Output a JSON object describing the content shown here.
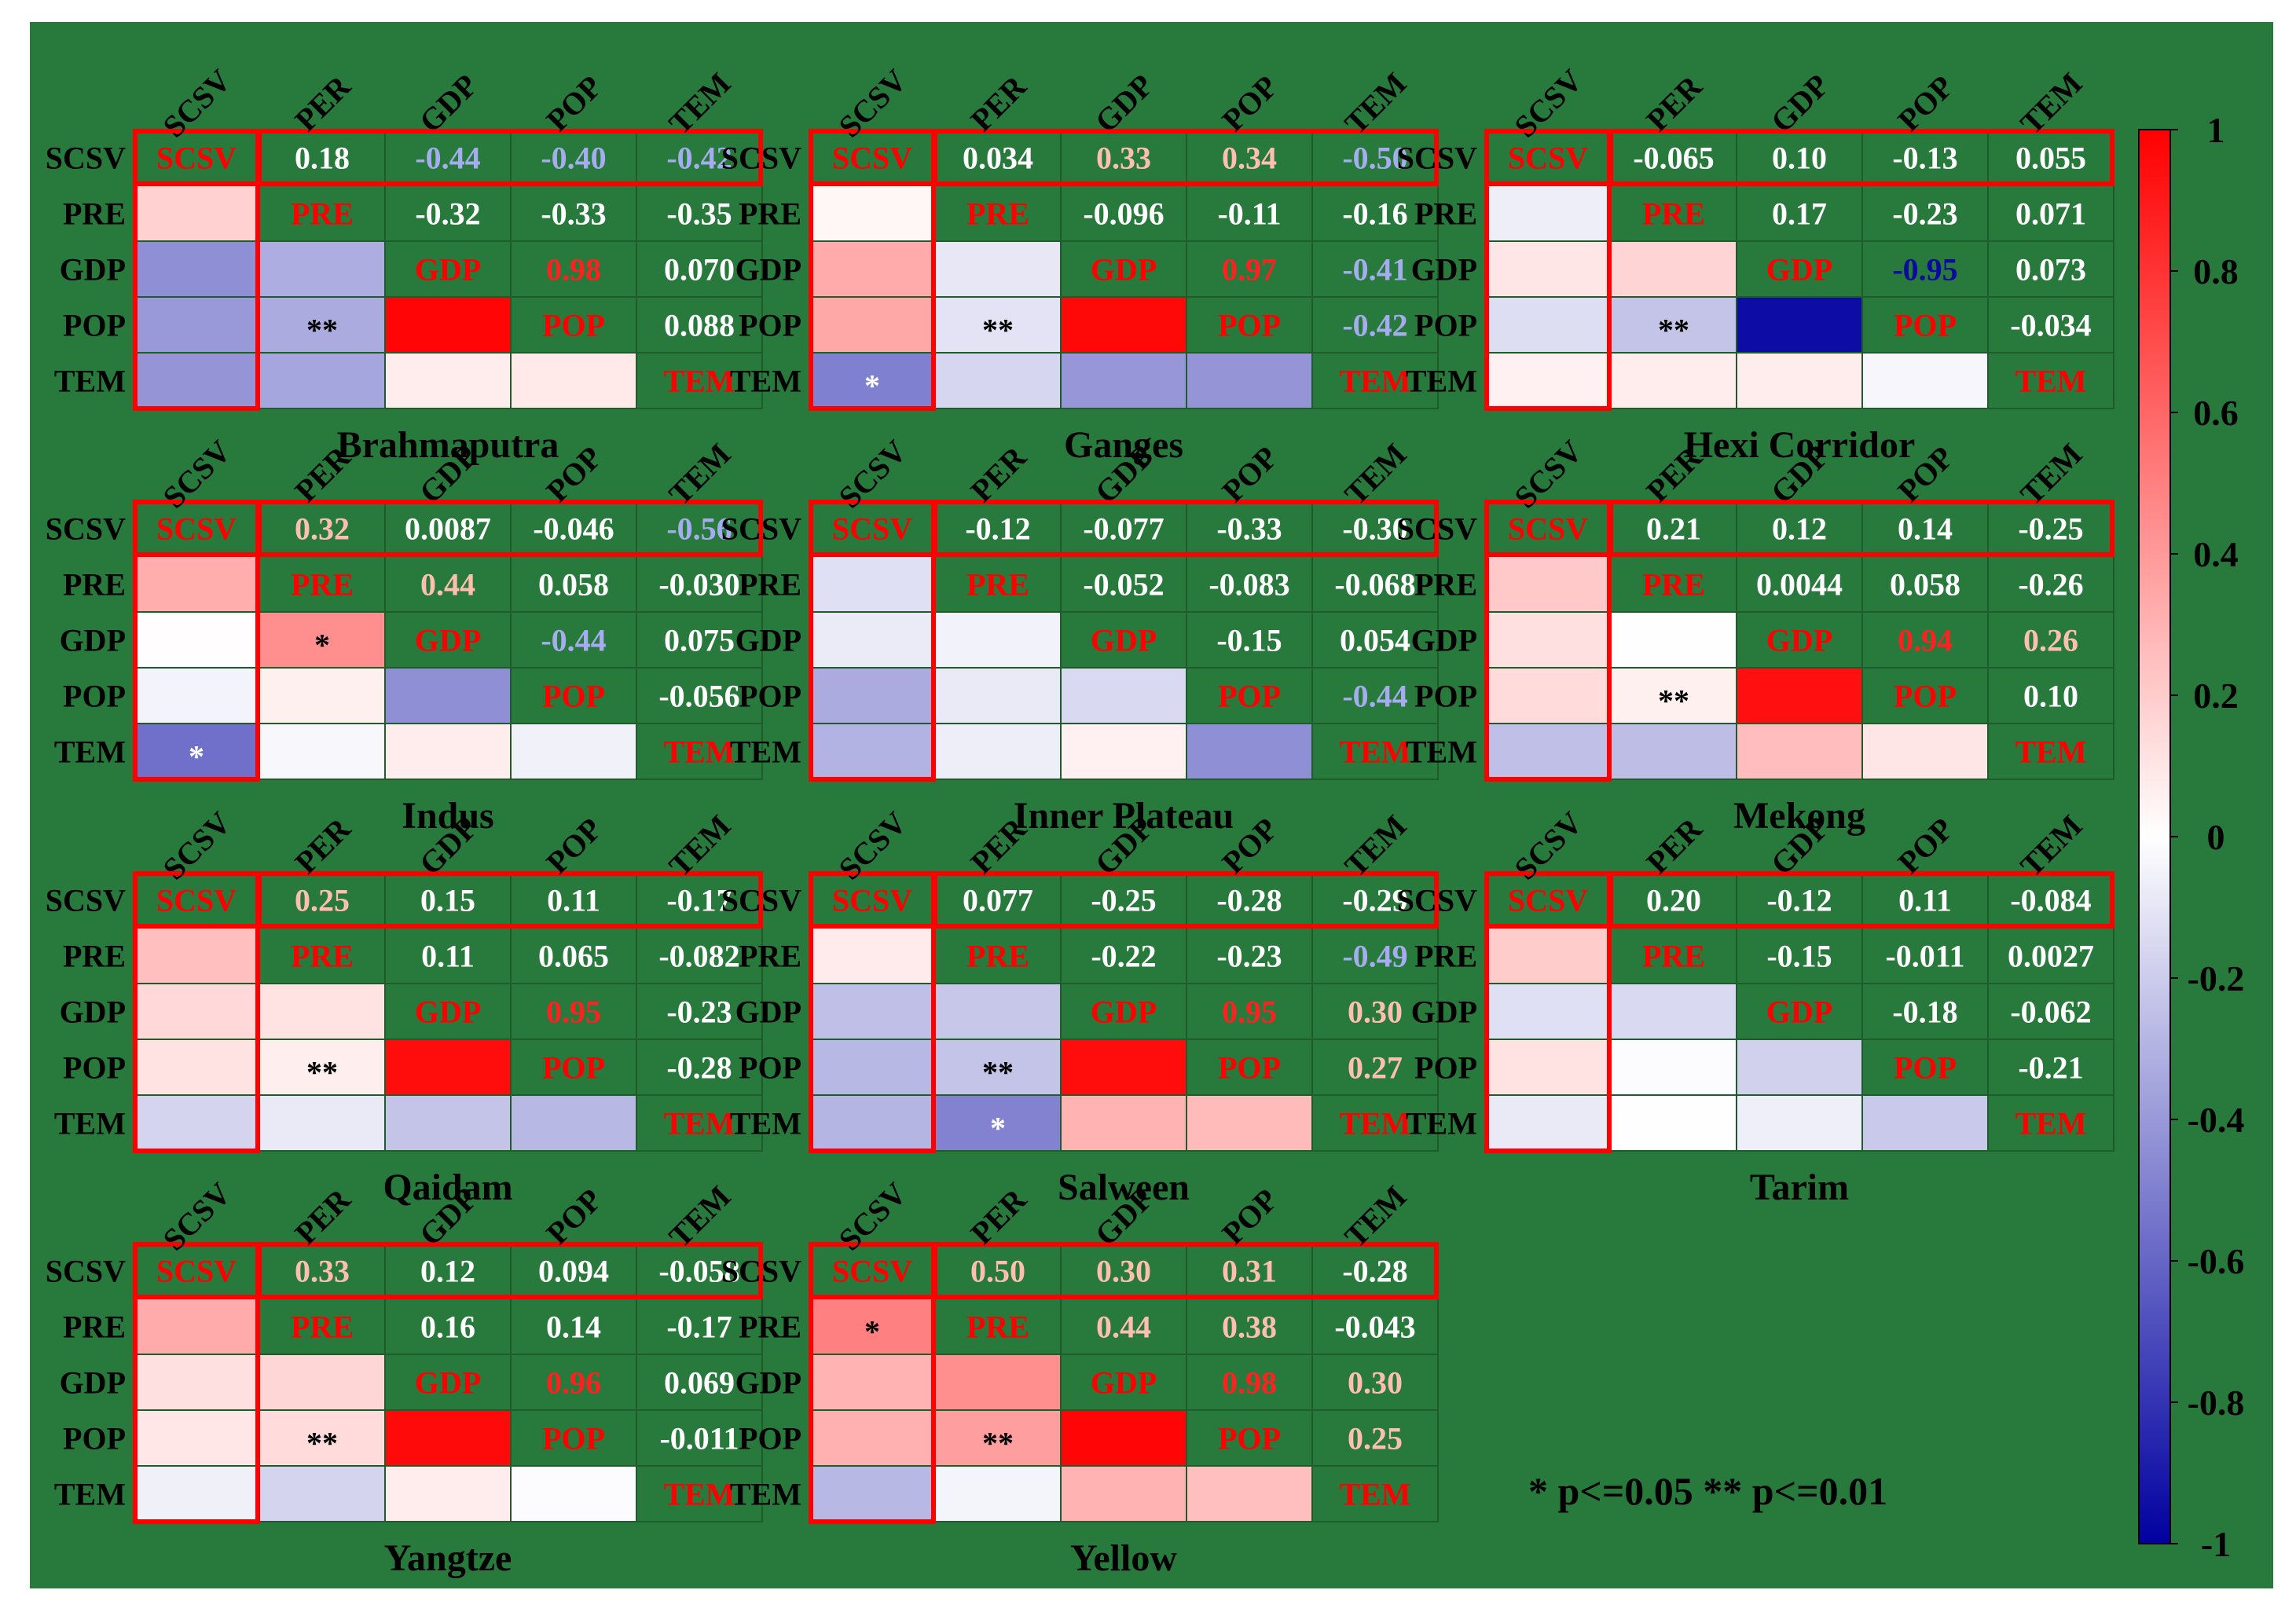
{
  "chart_data": {
    "type": "heatmap",
    "variables_rows": [
      "SCSV",
      "PRE",
      "GDP",
      "POP",
      "TEM"
    ],
    "variables_cols": [
      "SCSV",
      "PER",
      "GDP",
      "POP",
      "TEM"
    ],
    "diagonal_labels": [
      "SCSV",
      "PRE",
      "GDP",
      "POP",
      "TEM"
    ],
    "colorbar": {
      "ticks": [
        "1",
        "0.8",
        "0.6",
        "0.4",
        "0.2",
        "0",
        "-0.2",
        "-0.4",
        "-0.6",
        "-0.8",
        "-1"
      ],
      "range": [
        -1,
        1
      ],
      "colors": {
        "high": "#ff0000",
        "mid": "#ffffff",
        "low": "#0000a0"
      }
    },
    "background_color": "#287a3c",
    "highlight_color": "#ff0000",
    "significance_note": "* p<=0.05  ** p<=0.01",
    "panels": [
      {
        "title": "Brahmaputra",
        "upper": [
          [
            "0.18",
            "-0.44",
            "-0.40",
            "-0.42"
          ],
          [
            "-0.32",
            "-0.33",
            "-0.35"
          ],
          [
            "0.98",
            "0.070"
          ],
          [
            "0.088"
          ]
        ],
        "stars": [
          [],
          [
            ""
          ],
          [
            "",
            ""
          ],
          [
            "",
            "**",
            ""
          ],
          [
            "",
            "",
            "",
            ""
          ]
        ]
      },
      {
        "title": "Ganges",
        "upper": [
          [
            "0.034",
            "0.33",
            "0.34",
            "-0.50"
          ],
          [
            "-0.096",
            "-0.11",
            "-0.16"
          ],
          [
            "0.97",
            "-0.41"
          ],
          [
            "-0.42"
          ]
        ],
        "stars": [
          [],
          [
            ""
          ],
          [
            "",
            ""
          ],
          [
            "",
            "**",
            ""
          ],
          [
            "*",
            "",
            "",
            ""
          ]
        ]
      },
      {
        "title": "Hexi Corridor",
        "upper": [
          [
            "-0.065",
            "0.10",
            "-0.13",
            "0.055"
          ],
          [
            "0.17",
            "-0.23",
            "0.071"
          ],
          [
            "-0.95",
            "0.073"
          ],
          [
            "-0.034"
          ]
        ],
        "stars": [
          [],
          [
            ""
          ],
          [
            "",
            ""
          ],
          [
            "",
            "**",
            ""
          ],
          [
            "",
            "",
            "",
            ""
          ]
        ]
      },
      {
        "title": "Indus",
        "upper": [
          [
            "0.32",
            "0.0087",
            "-0.046",
            "-0.56"
          ],
          [
            "0.44",
            "0.058",
            "-0.030"
          ],
          [
            "-0.44",
            "0.075"
          ],
          [
            "-0.056"
          ]
        ],
        "stars": [
          [],
          [
            ""
          ],
          [
            "",
            "*"
          ],
          [
            "",
            "",
            ""
          ],
          [
            "*",
            "",
            "",
            ""
          ]
        ]
      },
      {
        "title": "Inner Plateau",
        "upper": [
          [
            "-0.12",
            "-0.077",
            "-0.33",
            "-0.30"
          ],
          [
            "-0.052",
            "-0.083",
            "-0.068"
          ],
          [
            "-0.15",
            "0.054"
          ],
          [
            "-0.44"
          ]
        ],
        "stars": [
          [],
          [
            ""
          ],
          [
            "",
            ""
          ],
          [
            "",
            "",
            ""
          ],
          [
            "",
            "",
            "",
            ""
          ]
        ]
      },
      {
        "title": "Mekong",
        "upper": [
          [
            "0.21",
            "0.12",
            "0.14",
            "-0.25"
          ],
          [
            "0.0044",
            "0.058",
            "-0.26"
          ],
          [
            "0.94",
            "0.26"
          ],
          [
            "0.10"
          ]
        ],
        "stars": [
          [],
          [
            ""
          ],
          [
            "",
            ""
          ],
          [
            "",
            "**",
            ""
          ],
          [
            "",
            "",
            "",
            ""
          ]
        ]
      },
      {
        "title": "Qaidam",
        "upper": [
          [
            "0.25",
            "0.15",
            "0.11",
            "-0.17"
          ],
          [
            "0.11",
            "0.065",
            "-0.082"
          ],
          [
            "0.95",
            "-0.23"
          ],
          [
            "-0.28"
          ]
        ],
        "stars": [
          [],
          [
            ""
          ],
          [
            "",
            ""
          ],
          [
            "",
            "**",
            ""
          ],
          [
            "",
            "",
            "",
            ""
          ]
        ]
      },
      {
        "title": "Salween",
        "upper": [
          [
            "0.077",
            "-0.25",
            "-0.28",
            "-0.29"
          ],
          [
            "-0.22",
            "-0.23",
            "-0.49"
          ],
          [
            "0.95",
            "0.30"
          ],
          [
            "0.27"
          ]
        ],
        "stars": [
          [],
          [
            ""
          ],
          [
            "",
            ""
          ],
          [
            "",
            "**",
            ""
          ],
          [
            "",
            "*",
            "",
            ""
          ]
        ]
      },
      {
        "title": "Tarim",
        "upper": [
          [
            "0.20",
            "-0.12",
            "0.11",
            "-0.084"
          ],
          [
            "-0.15",
            "-0.011",
            "0.0027"
          ],
          [
            "-0.18",
            "-0.062"
          ],
          [
            "-0.21"
          ]
        ],
        "stars": [
          [],
          [
            ""
          ],
          [
            "",
            ""
          ],
          [
            "",
            "",
            ""
          ],
          [
            "",
            "",
            "",
            ""
          ]
        ]
      },
      {
        "title": "Yangtze",
        "upper": [
          [
            "0.33",
            "0.12",
            "0.094",
            "-0.058"
          ],
          [
            "0.16",
            "0.14",
            "-0.17"
          ],
          [
            "0.96",
            "0.069"
          ],
          [
            "-0.011"
          ]
        ],
        "stars": [
          [],
          [
            ""
          ],
          [
            "",
            ""
          ],
          [
            "",
            "**",
            ""
          ],
          [
            "",
            "",
            "",
            ""
          ]
        ]
      },
      {
        "title": "Yellow",
        "upper": [
          [
            "0.50",
            "0.30",
            "0.31",
            "-0.28"
          ],
          [
            "0.44",
            "0.38",
            "-0.043"
          ],
          [
            "0.98",
            "0.30"
          ],
          [
            "0.25"
          ]
        ],
        "stars": [
          [],
          [
            "*"
          ],
          [
            "",
            ""
          ],
          [
            "",
            "**",
            ""
          ],
          [
            "",
            "",
            "",
            ""
          ]
        ]
      }
    ]
  }
}
